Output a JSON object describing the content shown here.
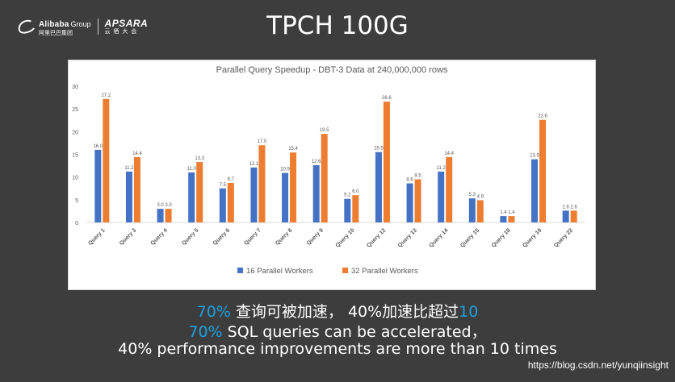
{
  "slide": {
    "background": "#3d3d3d",
    "logo": {
      "icon": "alibaba-logo-icon",
      "brand": "Alibaba",
      "brand_suffix": "Group",
      "brand_cn": "阿里巴巴集团",
      "product": "APSARA",
      "product_cn": "云 栖 大 会"
    },
    "title": "TPCH 100G",
    "captions": {
      "line1": {
        "pct": "70%",
        "text": " 查询可被加速， 40%加速比超过",
        "num": "10"
      },
      "line2": {
        "pct": "70%",
        "text": " SQL queries can be accelerated，"
      },
      "line3": "40% performance improvements are more than 10 times"
    },
    "highlight_color": "#1ba1e2",
    "watermark": "https://blog.csdn.net/yunqiinsight"
  },
  "chart_data": {
    "type": "bar",
    "title": "Parallel Query Speedup - DBT-3 Data at 240,000,000 rows",
    "categories": [
      "Query 1",
      "Query 3",
      "Query 4",
      "Query 5",
      "Query 6",
      "Query 7",
      "Query 8",
      "Query 9",
      "Query 10",
      "Query 12",
      "Query 13",
      "Query 14",
      "Query 15",
      "Query 18",
      "Query 19",
      "Query 22"
    ],
    "series": [
      {
        "name": "16 Parallel Workers",
        "color": "#4472c4",
        "values": [
          16.0,
          11.2,
          3.0,
          11.0,
          7.5,
          12.1,
          10.9,
          12.6,
          5.2,
          15.5,
          8.6,
          11.2,
          5.3,
          1.4,
          13.9,
          2.6
        ],
        "labels": [
          "16.0",
          "11.2",
          "3.0",
          "11.0",
          "7.5",
          "12.1",
          "10.9",
          "12.6",
          "5.2",
          "15.5",
          "8.6",
          "11.2",
          "5.3",
          "1.4",
          "13.9",
          "2.6"
        ]
      },
      {
        "name": "32 Parallel Workers",
        "color": "#ed7d31",
        "values": [
          27.2,
          14.4,
          3.0,
          13.3,
          8.7,
          17.0,
          15.4,
          19.5,
          6.0,
          26.6,
          9.5,
          14.4,
          4.9,
          1.4,
          22.6,
          2.6
        ],
        "labels": [
          "27.2",
          "14.4",
          "3.0",
          "13.3",
          "8.7",
          "17.0",
          "15.4",
          "19.5",
          "6.0",
          "26.6",
          "9.5",
          "14.4",
          "4.9",
          "1.4",
          "22.6",
          "2.6"
        ]
      }
    ],
    "ylim": [
      0,
      30
    ],
    "yticks": [
      "0",
      "5",
      "10",
      "15",
      "20",
      "25",
      "30"
    ],
    "grid": false,
    "legend_position": "bottom"
  }
}
